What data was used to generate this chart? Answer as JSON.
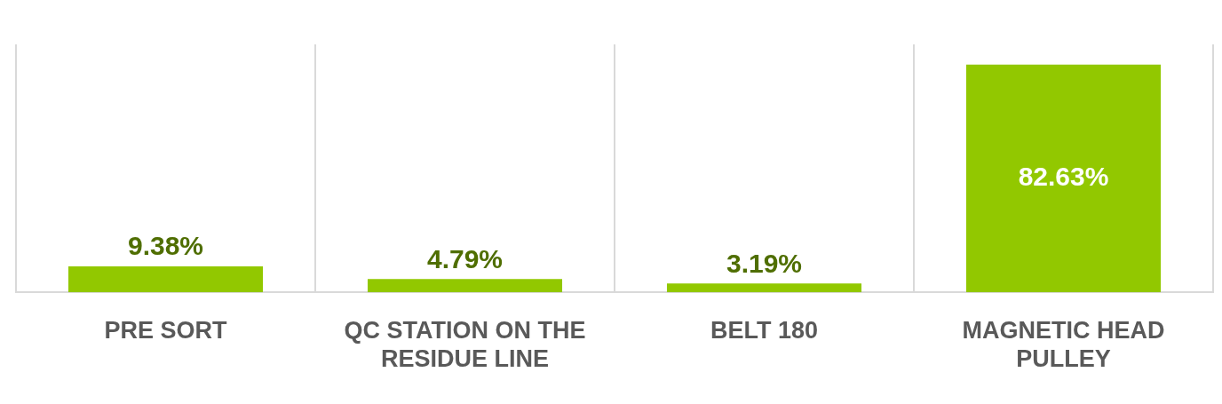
{
  "chart_data": {
    "type": "bar",
    "categories": [
      "PRE SORT",
      "QC STATION ON THE RESIDUE LINE",
      "BELT 180",
      "MAGNETIC HEAD PULLEY"
    ],
    "values": [
      9.38,
      4.79,
      3.19,
      82.63
    ],
    "value_labels": [
      "9.38%",
      "4.79%",
      "3.19%",
      "82.63%"
    ],
    "color": "#92c800",
    "grid": "x",
    "legend": false
  }
}
